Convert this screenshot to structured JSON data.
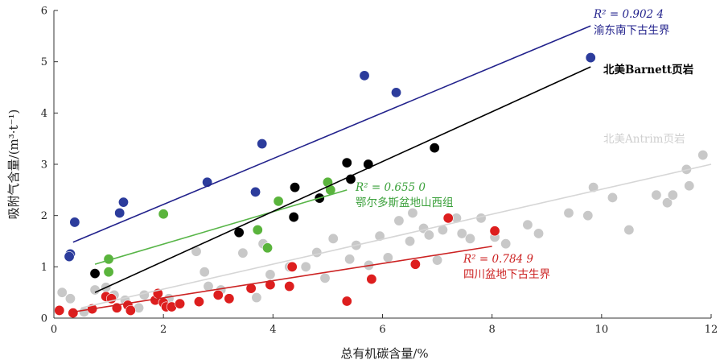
{
  "chart_data": {
    "type": "scatter",
    "xlabel": "总有机碳含量/%",
    "ylabel": "吸附气含量/(m³·t⁻¹)",
    "xlim": [
      0,
      12
    ],
    "ylim": [
      0,
      6
    ],
    "xticks": [
      "0",
      "2",
      "4",
      "6",
      "8",
      "10",
      "12"
    ],
    "yticks": [
      "0",
      "1",
      "2",
      "3",
      "4",
      "5",
      "6"
    ],
    "grid": false,
    "series": [
      {
        "name": "渝东南下古生界",
        "color": "#2c3c9c",
        "line_color": "#22228c",
        "r2": "R² = 0.902 4",
        "trend": [
          [
            0.35,
            1.48
          ],
          [
            9.8,
            5.7
          ]
        ],
        "points": [
          [
            0.3,
            1.25
          ],
          [
            0.28,
            1.2
          ],
          [
            0.38,
            1.87
          ],
          [
            1.2,
            2.05
          ],
          [
            1.27,
            2.26
          ],
          [
            2.8,
            2.65
          ],
          [
            3.68,
            2.46
          ],
          [
            3.8,
            3.4
          ],
          [
            5.67,
            4.73
          ],
          [
            6.25,
            4.4
          ],
          [
            9.8,
            5.08
          ]
        ]
      },
      {
        "name": "北美Barnett页岩",
        "color": "#000000",
        "line_color": "#000000",
        "r2": "",
        "trend": [
          [
            0.75,
            0.5
          ],
          [
            9.8,
            4.9
          ]
        ],
        "points": [
          [
            0.75,
            0.87
          ],
          [
            3.38,
            1.67
          ],
          [
            4.38,
            1.97
          ],
          [
            4.4,
            2.55
          ],
          [
            4.85,
            2.34
          ],
          [
            5.35,
            3.03
          ],
          [
            5.42,
            2.71
          ],
          [
            5.74,
            3.0
          ],
          [
            6.95,
            3.32
          ]
        ]
      },
      {
        "name": "北美Antrim页岩",
        "color": "#c8c8c8",
        "line_color": "#d6d6d6",
        "r2": "",
        "trend": [
          [
            0.5,
            0.2
          ],
          [
            12,
            3.0
          ]
        ],
        "points": [
          [
            0.15,
            0.5
          ],
          [
            0.3,
            0.38
          ],
          [
            0.55,
            0.12
          ],
          [
            0.75,
            0.55
          ],
          [
            0.95,
            0.6
          ],
          [
            1.1,
            0.45
          ],
          [
            1.3,
            0.35
          ],
          [
            1.55,
            0.2
          ],
          [
            1.65,
            0.45
          ],
          [
            2.1,
            0.38
          ],
          [
            2.6,
            1.3
          ],
          [
            2.75,
            0.9
          ],
          [
            2.82,
            0.62
          ],
          [
            3.05,
            0.55
          ],
          [
            3.45,
            1.27
          ],
          [
            3.7,
            0.4
          ],
          [
            3.82,
            1.45
          ],
          [
            3.95,
            0.85
          ],
          [
            4.3,
            1.0
          ],
          [
            4.6,
            1.0
          ],
          [
            4.8,
            1.28
          ],
          [
            4.95,
            0.78
          ],
          [
            5.1,
            1.55
          ],
          [
            5.4,
            1.15
          ],
          [
            5.52,
            1.42
          ],
          [
            5.75,
            1.03
          ],
          [
            5.95,
            1.6
          ],
          [
            6.1,
            1.18
          ],
          [
            6.3,
            1.9
          ],
          [
            6.5,
            1.5
          ],
          [
            6.55,
            2.05
          ],
          [
            6.75,
            1.75
          ],
          [
            6.85,
            1.62
          ],
          [
            7.0,
            1.13
          ],
          [
            7.1,
            1.72
          ],
          [
            7.35,
            1.95
          ],
          [
            7.45,
            1.65
          ],
          [
            7.6,
            1.55
          ],
          [
            7.8,
            1.95
          ],
          [
            8.05,
            1.58
          ],
          [
            8.25,
            1.45
          ],
          [
            8.65,
            1.82
          ],
          [
            8.85,
            1.65
          ],
          [
            9.4,
            2.05
          ],
          [
            9.75,
            2.0
          ],
          [
            9.85,
            2.55
          ],
          [
            10.2,
            2.35
          ],
          [
            10.5,
            1.72
          ],
          [
            11.0,
            2.4
          ],
          [
            11.2,
            2.25
          ],
          [
            11.3,
            2.4
          ],
          [
            11.55,
            2.9
          ],
          [
            11.6,
            2.58
          ],
          [
            11.85,
            3.18
          ]
        ]
      },
      {
        "name": "鄂尔多斯盆地山西组",
        "color": "#5ab43c",
        "line_color": "#58b548",
        "r2": "R² = 0.655 0",
        "trend": [
          [
            0.75,
            1.05
          ],
          [
            5.35,
            2.5
          ]
        ],
        "points": [
          [
            1.0,
            1.15
          ],
          [
            1.0,
            0.9
          ],
          [
            2.0,
            2.03
          ],
          [
            3.72,
            1.72
          ],
          [
            3.9,
            1.37
          ],
          [
            4.1,
            2.28
          ],
          [
            5.0,
            2.65
          ],
          [
            5.05,
            2.5
          ]
        ]
      },
      {
        "name": "四川盆地下古生界",
        "color": "#dd1e1e",
        "line_color": "#cc2222",
        "r2": "R² = 0.784 9",
        "trend": [
          [
            0.35,
            0.12
          ],
          [
            8.0,
            1.4
          ]
        ],
        "points": [
          [
            0.1,
            0.15
          ],
          [
            0.35,
            0.1
          ],
          [
            0.7,
            0.18
          ],
          [
            0.95,
            0.42
          ],
          [
            1.05,
            0.38
          ],
          [
            1.15,
            0.2
          ],
          [
            1.35,
            0.25
          ],
          [
            1.4,
            0.15
          ],
          [
            1.85,
            0.35
          ],
          [
            1.9,
            0.48
          ],
          [
            2.0,
            0.3
          ],
          [
            2.05,
            0.22
          ],
          [
            2.15,
            0.22
          ],
          [
            2.3,
            0.28
          ],
          [
            2.65,
            0.32
          ],
          [
            3.0,
            0.45
          ],
          [
            3.2,
            0.38
          ],
          [
            3.6,
            0.58
          ],
          [
            3.95,
            0.65
          ],
          [
            4.3,
            0.62
          ],
          [
            4.35,
            1.0
          ],
          [
            5.35,
            0.33
          ],
          [
            5.8,
            0.76
          ],
          [
            6.6,
            1.05
          ],
          [
            7.2,
            1.95
          ],
          [
            8.05,
            1.7
          ]
        ]
      }
    ]
  }
}
